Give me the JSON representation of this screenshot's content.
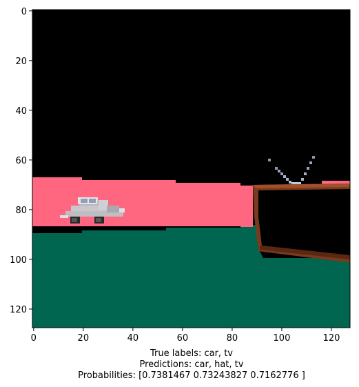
{
  "plot": {
    "x_ticks": [
      "0",
      "20",
      "40",
      "60",
      "80",
      "100",
      "120"
    ],
    "y_ticks": [
      "0",
      "20",
      "40",
      "60",
      "80",
      "100",
      "120"
    ],
    "x_tick_values": [
      0,
      20,
      40,
      60,
      80,
      100,
      120
    ],
    "y_tick_values": [
      0,
      20,
      40,
      60,
      80,
      100,
      120
    ],
    "xlim": [
      -0.5,
      127.5
    ],
    "ylim": [
      127.5,
      -0.5
    ]
  },
  "caption": {
    "line1": "True labels: car, tv",
    "line2": "Predictions: car, hat, tv",
    "line3": "Probabilities: [0.7381467  0.73243827 0.7162776 ]"
  },
  "colors": {
    "sky": "#000000",
    "pink_band": "#ff6680",
    "ground": "#006650",
    "tv_frame": "#7a3a1e",
    "car_body": "#c8c8cc"
  },
  "scene": {
    "objects": [
      "car-icon",
      "tv-icon",
      "hat-region"
    ]
  }
}
